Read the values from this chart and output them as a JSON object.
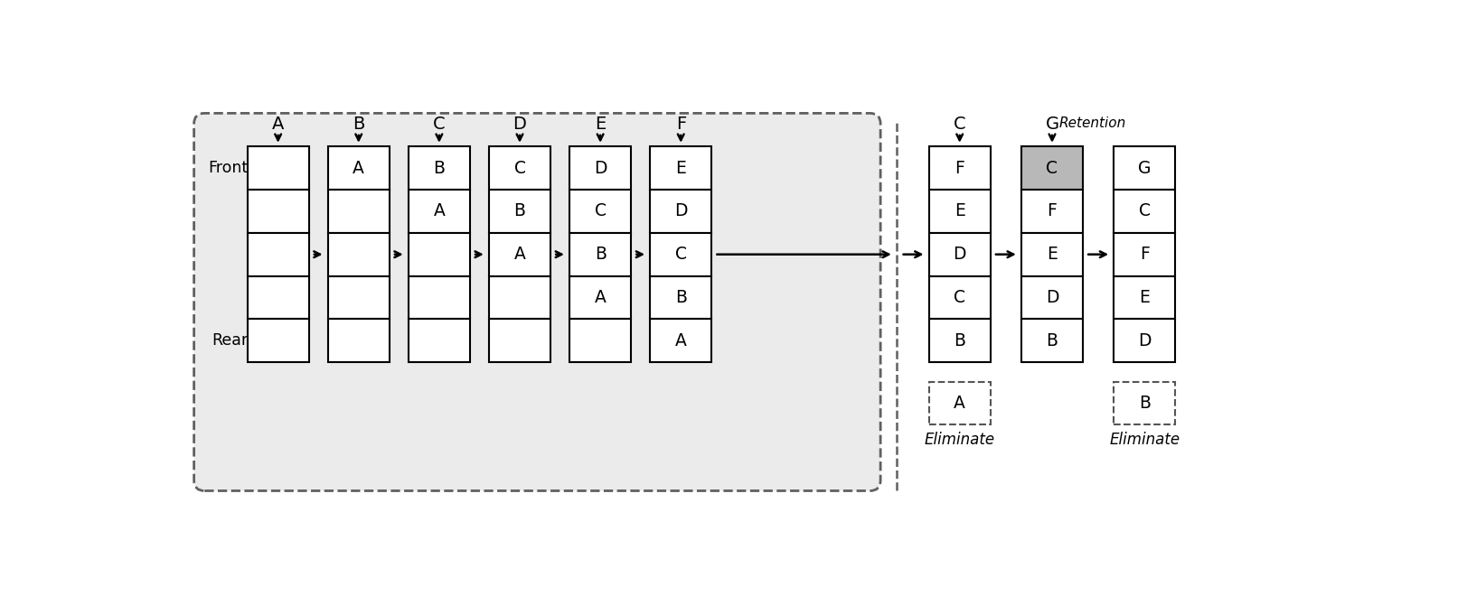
{
  "fig_width": 16.24,
  "fig_height": 6.6,
  "gray_fill": "#b8b8b8",
  "left_panel": {
    "columns": [
      {
        "label": "A",
        "items": []
      },
      {
        "label": "B",
        "items": [
          "A"
        ]
      },
      {
        "label": "C",
        "items": [
          "B",
          "A"
        ]
      },
      {
        "label": "D",
        "items": [
          "C",
          "B",
          "A"
        ]
      },
      {
        "label": "E",
        "items": [
          "D",
          "C",
          "B",
          "A"
        ]
      },
      {
        "label": "F",
        "items": [
          "E",
          "D",
          "C",
          "B",
          "A"
        ]
      }
    ],
    "n_slots": 5,
    "front_label": "Front",
    "rear_label": "Rear"
  },
  "right_panel": {
    "columns": [
      {
        "label": "C",
        "items": [
          "F",
          "E",
          "D",
          "C",
          "B"
        ],
        "dashed_item": "A",
        "dashed_label": "Eliminate",
        "gray_slot": null,
        "retention_label": null
      },
      {
        "label": "G",
        "items": [
          "C",
          "F",
          "E",
          "D",
          "B"
        ],
        "dashed_item": null,
        "dashed_label": null,
        "gray_slot": 0,
        "retention_label": "Retention"
      },
      {
        "label": null,
        "items": [
          "G",
          "C",
          "F",
          "E",
          "D"
        ],
        "dashed_item": "B",
        "dashed_label": "Eliminate",
        "gray_slot": null,
        "retention_label": null
      }
    ],
    "n_slots": 5
  }
}
